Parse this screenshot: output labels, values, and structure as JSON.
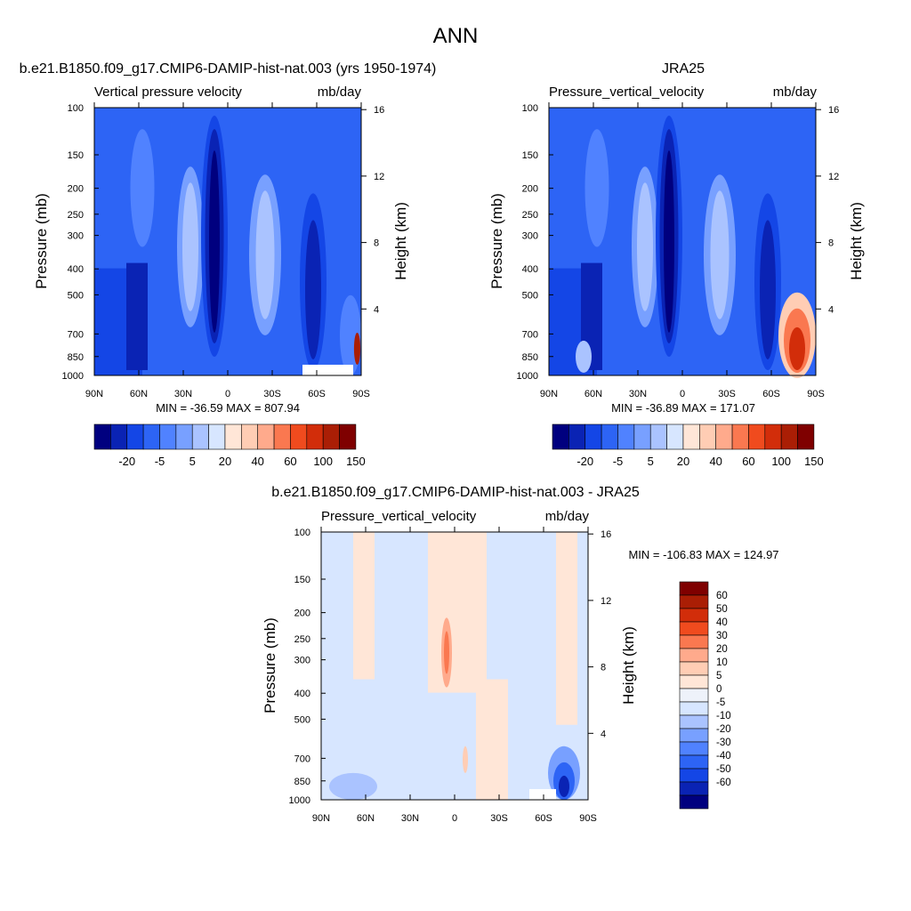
{
  "page": {
    "title": "ANN"
  },
  "colors": {
    "scale_a": [
      "#00007f",
      "#0a23b4",
      "#1446e6",
      "#2d64f5",
      "#5082ff",
      "#78a0ff",
      "#aac3ff",
      "#d7e6ff",
      "#ffe6d7",
      "#ffcdb4",
      "#ffaa8c",
      "#fa7850",
      "#f04b1e",
      "#d22d0a",
      "#aa1e05",
      "#7f0000"
    ],
    "scale_b": [
      "#00007f",
      "#0a23b4",
      "#1446e6",
      "#2d64f5",
      "#5082ff",
      "#78a0ff",
      "#aac3ff",
      "#d7e6ff",
      "#eef2fa",
      "#ffe6d7",
      "#ffcdb4",
      "#ffaa8c",
      "#fa7850",
      "#f04b1e",
      "#d22d0a",
      "#aa1e05",
      "#7f0000"
    ]
  },
  "chart_data": [
    {
      "type": "heatmap",
      "title": "b.e21.B1850.f09_g17.CMIP6-DAMIP-hist-nat.003 (yrs 1950-1974)",
      "variable": "Vertical pressure velocity",
      "units": "mb/day",
      "ylabel": "Pressure (mb)",
      "y2label": "Height (km)",
      "x_ticks": [
        "90N",
        "60N",
        "30N",
        "0",
        "30S",
        "60S",
        "90S"
      ],
      "y_ticks": [
        "100",
        "150",
        "200",
        "250",
        "300",
        "400",
        "500",
        "700",
        "850",
        "1000"
      ],
      "y2_ticks": [
        "16",
        "12",
        "8",
        "4"
      ],
      "stats": "MIN = -36.59  MAX = 807.94",
      "ylim": [
        1000,
        100
      ],
      "colorbar_labels": [
        "-20",
        "-5",
        "5",
        "20",
        "40",
        "60",
        "100",
        "150"
      ]
    },
    {
      "type": "heatmap",
      "title": "JRA25",
      "variable": "Pressure_vertical_velocity",
      "units": "mb/day",
      "ylabel": "Pressure (mb)",
      "y2label": "Height (km)",
      "x_ticks": [
        "90N",
        "60N",
        "30N",
        "0",
        "30S",
        "60S",
        "90S"
      ],
      "y_ticks": [
        "100",
        "150",
        "200",
        "250",
        "300",
        "400",
        "500",
        "700",
        "850",
        "1000"
      ],
      "y2_ticks": [
        "16",
        "12",
        "8",
        "4"
      ],
      "stats": "MIN = -36.89  MAX = 171.07",
      "ylim": [
        1000,
        100
      ],
      "colorbar_labels": [
        "-20",
        "-5",
        "5",
        "20",
        "40",
        "60",
        "100",
        "150"
      ]
    },
    {
      "type": "heatmap",
      "title": "b.e21.B1850.f09_g17.CMIP6-DAMIP-hist-nat.003 - JRA25",
      "variable": "Pressure_vertical_velocity",
      "units": "mb/day",
      "ylabel": "Pressure (mb)",
      "y2label": "Height (km)",
      "x_ticks": [
        "90N",
        "60N",
        "30N",
        "0",
        "30S",
        "60S",
        "90S"
      ],
      "y_ticks": [
        "100",
        "150",
        "200",
        "250",
        "300",
        "400",
        "500",
        "700",
        "850",
        "1000"
      ],
      "y2_ticks": [
        "16",
        "12",
        "8",
        "4"
      ],
      "stats": "MIN = -106.83  MAX = 124.97",
      "ylim": [
        1000,
        100
      ],
      "colorbar_labels": [
        "60",
        "50",
        "40",
        "30",
        "20",
        "10",
        "5",
        "0",
        "-5",
        "-10",
        "-20",
        "-30",
        "-40",
        "-50",
        "-60"
      ]
    }
  ]
}
